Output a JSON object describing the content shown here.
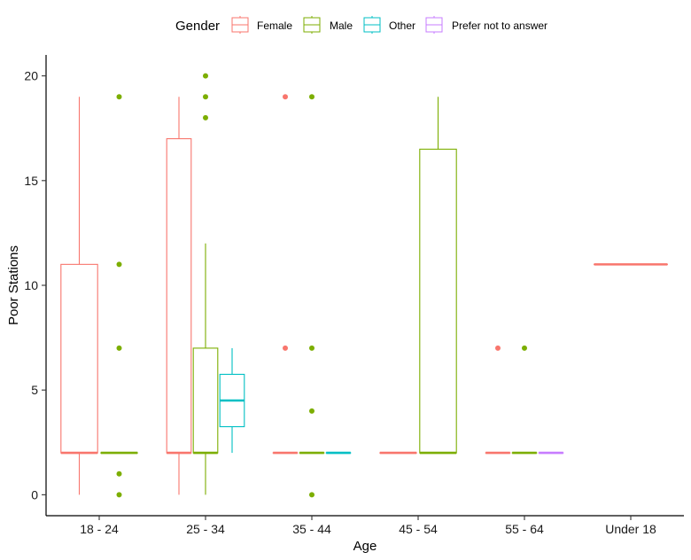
{
  "chart_data": {
    "type": "boxplot",
    "xlabel": "Age",
    "ylabel": "Poor Stations",
    "ylim": [
      -1,
      21
    ],
    "yticks": [
      0,
      5,
      10,
      15,
      20
    ],
    "categories": [
      "18 - 24",
      "25 - 34",
      "35 - 44",
      "45 - 54",
      "55 - 64",
      "Under 18"
    ],
    "legend": {
      "title": "Gender",
      "position": "top",
      "entries": [
        {
          "name": "Female",
          "color": "#F8766D"
        },
        {
          "name": "Male",
          "color": "#7CAE00"
        },
        {
          "name": "Other",
          "color": "#00BFC4"
        },
        {
          "name": "Prefer not to answer",
          "color": "#C77CFF"
        }
      ]
    },
    "grid": false,
    "groups": [
      {
        "category": "18 - 24",
        "boxes": [
          {
            "gender": "Female",
            "slot": 0,
            "slots": 2,
            "whisker_low": 0,
            "q1": 2,
            "median": 2,
            "q3": 11,
            "whisker_high": 19,
            "outliers": []
          },
          {
            "gender": "Male",
            "slot": 1,
            "slots": 2,
            "whisker_low": 2,
            "q1": 2,
            "median": 2,
            "q3": 2,
            "whisker_high": 2,
            "outliers": [
              0,
              1,
              7,
              11,
              19
            ]
          }
        ]
      },
      {
        "category": "25 - 34",
        "boxes": [
          {
            "gender": "Female",
            "slot": 0,
            "slots": 3,
            "whisker_low": 0,
            "q1": 2,
            "median": 2,
            "q3": 17,
            "whisker_high": 19,
            "outliers": []
          },
          {
            "gender": "Male",
            "slot": 1,
            "slots": 3,
            "whisker_low": 0,
            "q1": 2,
            "median": 2,
            "q3": 7,
            "whisker_high": 12,
            "outliers": [
              18,
              19,
              20
            ]
          },
          {
            "gender": "Other",
            "slot": 2,
            "slots": 3,
            "whisker_low": 2,
            "q1": 3.25,
            "median": 4.5,
            "q3": 5.75,
            "whisker_high": 7,
            "outliers": []
          }
        ]
      },
      {
        "category": "35 - 44",
        "boxes": [
          {
            "gender": "Female",
            "slot": 0,
            "slots": 3,
            "whisker_low": 2,
            "q1": 2,
            "median": 2,
            "q3": 2,
            "whisker_high": 2,
            "outliers": [
              7,
              19
            ]
          },
          {
            "gender": "Male",
            "slot": 1,
            "slots": 3,
            "whisker_low": 2,
            "q1": 2,
            "median": 2,
            "q3": 2,
            "whisker_high": 2,
            "outliers": [
              0,
              4,
              7,
              19
            ]
          },
          {
            "gender": "Other",
            "slot": 2,
            "slots": 3,
            "whisker_low": 2,
            "q1": 2,
            "median": 2,
            "q3": 2,
            "whisker_high": 2,
            "outliers": []
          }
        ]
      },
      {
        "category": "45 - 54",
        "boxes": [
          {
            "gender": "Female",
            "slot": 0,
            "slots": 2,
            "whisker_low": 2,
            "q1": 2,
            "median": 2,
            "q3": 2,
            "whisker_high": 2,
            "outliers": []
          },
          {
            "gender": "Male",
            "slot": 1,
            "slots": 2,
            "whisker_low": 2,
            "q1": 2,
            "median": 2,
            "q3": 16.5,
            "whisker_high": 19,
            "outliers": []
          }
        ]
      },
      {
        "category": "55 - 64",
        "boxes": [
          {
            "gender": "Female",
            "slot": 0,
            "slots": 3,
            "whisker_low": 2,
            "q1": 2,
            "median": 2,
            "q3": 2,
            "whisker_high": 2,
            "outliers": [
              7
            ]
          },
          {
            "gender": "Male",
            "slot": 1,
            "slots": 3,
            "whisker_low": 2,
            "q1": 2,
            "median": 2,
            "q3": 2,
            "whisker_high": 2,
            "outliers": [
              7
            ]
          },
          {
            "gender": "Prefer not to answer",
            "slot": 2,
            "slots": 3,
            "whisker_low": 2,
            "q1": 2,
            "median": 2,
            "q3": 2,
            "whisker_high": 2,
            "outliers": []
          }
        ]
      },
      {
        "category": "Under 18",
        "boxes": [
          {
            "gender": "Female",
            "slot": 0,
            "slots": 1,
            "whisker_low": 11,
            "q1": 11,
            "median": 11,
            "q3": 11,
            "whisker_high": 11,
            "outliers": []
          }
        ]
      }
    ]
  }
}
